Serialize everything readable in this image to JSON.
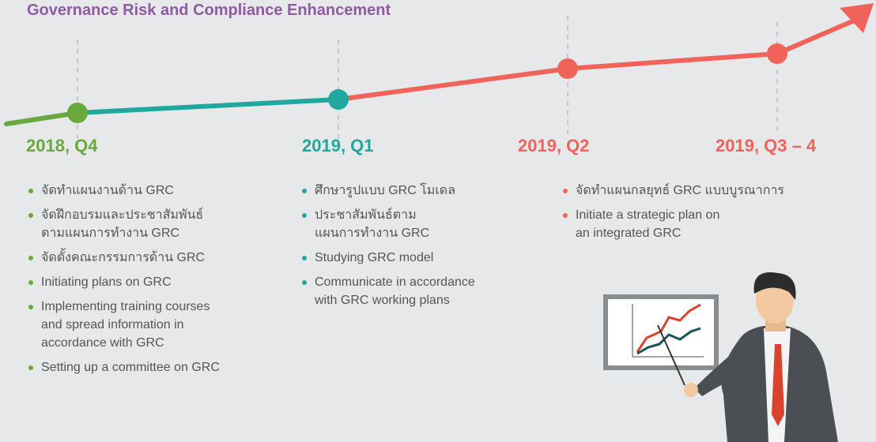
{
  "title": "Governance Risk and Compliance Enhancement",
  "milestones": [
    {
      "label": "2018, Q4"
    },
    {
      "label": "2019, Q1"
    },
    {
      "label": "2019, Q2"
    },
    {
      "label": "2019, Q3 – 4"
    }
  ],
  "columns": [
    {
      "items": [
        [
          "จัดทำแผนงานด้าน GRC"
        ],
        [
          "จัดฝึกอบรมและประชาสัมพันธ์",
          "ตามแผนการทำงาน GRC"
        ],
        [
          "จัดตั้งคณะกรรมการด้าน GRC"
        ],
        [
          "Initiating plans on GRC"
        ],
        [
          "Implementing training courses",
          "and spread information in",
          "accordance with GRC"
        ],
        [
          "Setting up a committee on GRC"
        ]
      ]
    },
    {
      "items": [
        [
          "ศึกษารูปแบบ GRC โมเดล"
        ],
        [
          "ประชาสัมพันธ์ตาม",
          "แผนการทำงาน GRC"
        ],
        [
          "Studying GRC model"
        ],
        [
          "Communicate in accordance",
          "with GRC working plans"
        ]
      ]
    },
    {
      "items": [
        [
          "จัดทำแผนกลยุทธ์ GRC แบบบูรณาการ"
        ],
        [
          "Initiate a strategic plan on",
          "an integrated GRC"
        ]
      ]
    }
  ]
}
